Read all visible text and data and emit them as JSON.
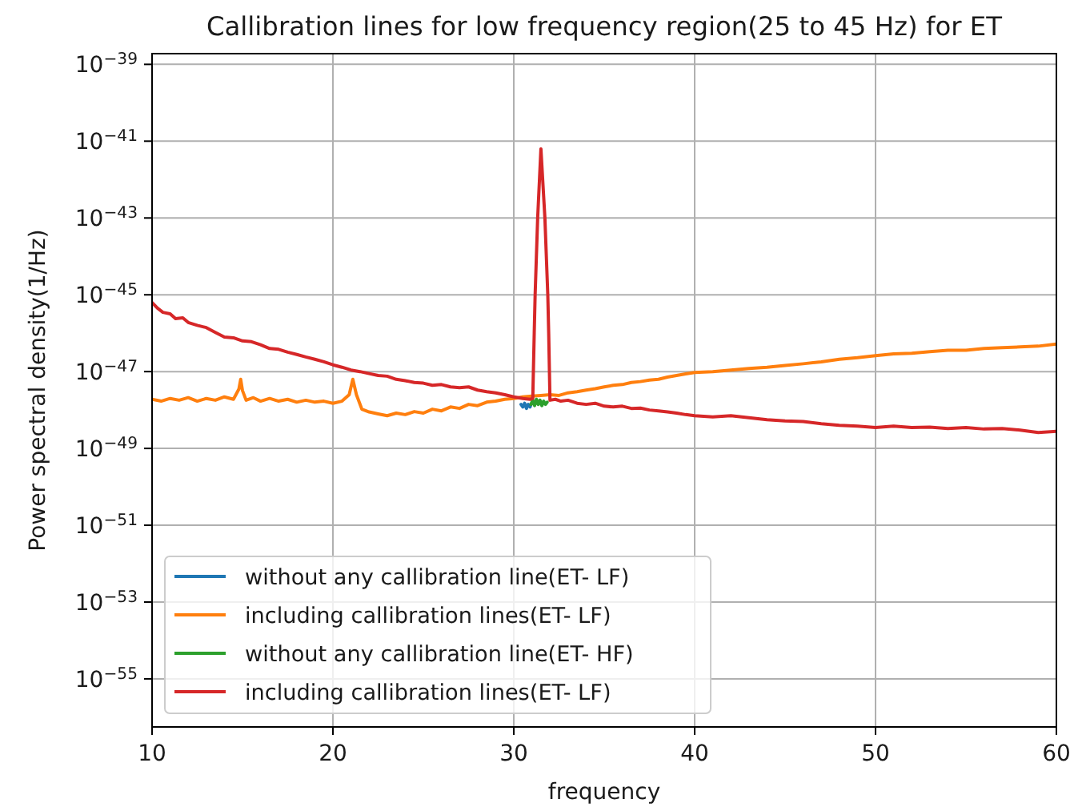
{
  "chart_data": {
    "type": "line",
    "title": "Callibration lines for low frequency region(25 to 45 Hz) for ET",
    "xlabel": "frequency",
    "ylabel": "Power spectral density(1/Hz)",
    "xlim": [
      10,
      60
    ],
    "xticks": [
      10,
      20,
      30,
      40,
      50,
      60
    ],
    "ylim": [
      5.6e-57,
      1.9e-39
    ],
    "log": true,
    "yticks": [
      {
        "value": 1e-39,
        "label": "10$^{−39}$"
      },
      {
        "value": 1e-41,
        "label": "10$^{−41}$"
      },
      {
        "value": 1e-43,
        "label": "10$^{−43}$"
      },
      {
        "value": 1e-45,
        "label": "10$^{−45}$"
      },
      {
        "value": 1e-47,
        "label": "10$^{−47}$"
      },
      {
        "value": 1e-49,
        "label": "10$^{−49}$"
      },
      {
        "value": 1e-51,
        "label": "10$^{−51}$"
      },
      {
        "value": 1e-53,
        "label": "10$^{−53}$"
      },
      {
        "value": 1e-55,
        "label": "10$^{−55}$"
      }
    ],
    "grid": true,
    "legend": "bottom left",
    "series": [
      {
        "name": "without any callibration line(ET- LF)",
        "color": "#1f77b4",
        "x": [
          30.4,
          30.5,
          30.6,
          30.7,
          30.8,
          30.9,
          30.95
        ],
        "values": [
          1.4e-48,
          1.2e-48,
          1.5e-48,
          1.1e-48,
          1.4e-48,
          1.2e-48,
          1.4e-48
        ]
      },
      {
        "name": "including callibration lines(ET- LF)",
        "color": "#ff7f0e",
        "x": [
          10.0,
          10.5,
          11.0,
          11.5,
          12.0,
          12.5,
          13.0,
          13.5,
          14.0,
          14.5,
          14.8,
          14.9,
          15.0,
          15.2,
          15.6,
          16.0,
          16.5,
          17.0,
          17.5,
          18.0,
          18.5,
          19.0,
          19.5,
          20.0,
          20.5,
          20.9,
          21.1,
          21.3,
          21.6,
          22.0,
          22.5,
          23.0,
          23.5,
          24.0,
          24.5,
          25.0,
          25.5,
          26.0,
          26.5,
          27.0,
          27.5,
          28.0,
          28.5,
          29.0,
          29.5,
          30.0,
          30.5,
          31.0,
          31.5,
          32.0,
          32.5,
          33.0,
          33.5,
          34.0,
          34.5,
          35.0,
          35.5,
          36.0,
          36.5,
          37.0,
          37.5,
          38.0,
          38.5,
          39.0,
          39.5,
          40.0,
          41.0,
          42.0,
          43.0,
          44.0,
          45.0,
          46.0,
          47.0,
          48.0,
          49.0,
          50.0,
          51.0,
          52.0,
          53.0,
          54.0,
          55.0,
          56.0,
          57.0,
          58.0,
          59.0,
          60.0
        ],
        "values": [
          1.9e-48,
          1.7e-48,
          2e-48,
          1.8e-48,
          2.1e-48,
          1.7e-48,
          2e-48,
          1.8e-48,
          2.2e-48,
          1.9e-48,
          3.5e-48,
          6.3e-48,
          3.2e-48,
          1.8e-48,
          2.1e-48,
          1.7e-48,
          2e-48,
          1.7e-48,
          1.9e-48,
          1.6e-48,
          1.8e-48,
          1.6e-48,
          1.7e-48,
          1.5e-48,
          1.7e-48,
          2.5e-48,
          6.3e-48,
          2.5e-48,
          1.05e-48,
          8.9e-49,
          7.9e-49,
          7.1e-49,
          8.3e-49,
          7.6e-49,
          9.1e-49,
          8.3e-49,
          1.05e-48,
          9.5e-49,
          1.2e-48,
          1.1e-48,
          1.4e-48,
          1.3e-48,
          1.6e-48,
          1.7e-48,
          1.9e-48,
          2e-48,
          2.2e-48,
          2.3e-48,
          2.4e-48,
          2.5e-48,
          2.4e-48,
          2.8e-48,
          3e-48,
          3.3e-48,
          3.6e-48,
          4e-48,
          4.4e-48,
          4.6e-48,
          5.2e-48,
          5.5e-48,
          6e-48,
          6.3e-48,
          7.2e-48,
          7.9e-48,
          8.7e-48,
          9.5e-48,
          1e-47,
          1.1e-47,
          1.2e-47,
          1.3e-47,
          1.45e-47,
          1.6e-47,
          1.8e-47,
          2.1e-47,
          2.3e-47,
          2.6e-47,
          2.9e-47,
          3e-47,
          3.3e-47,
          3.6e-47,
          3.6e-47,
          4e-47,
          4.2e-47,
          4.4e-47,
          4.6e-47,
          5.2e-47
        ]
      },
      {
        "name": "without any callibration line(ET- HF)",
        "color": "#2ca02c",
        "x": [
          30.95,
          31.05,
          31.15,
          31.25,
          31.35,
          31.45,
          31.55,
          31.65,
          31.75,
          31.85
        ],
        "values": [
          1.4e-48,
          1.8e-48,
          1.3e-48,
          1.9e-48,
          1.4e-48,
          1.8e-48,
          1.3e-48,
          1.7e-48,
          1.4e-48,
          1.6e-48
        ]
      },
      {
        "name": "including callibration lines(ET- LF)",
        "color": "#d62728",
        "x": [
          10.0,
          10.3,
          10.6,
          11.0,
          11.3,
          11.7,
          12.0,
          12.5,
          13.0,
          13.5,
          14.0,
          14.5,
          15.0,
          15.5,
          16.0,
          16.5,
          17.0,
          17.5,
          18.0,
          18.5,
          19.0,
          19.5,
          20.0,
          20.5,
          21.0,
          21.5,
          22.0,
          22.5,
          23.0,
          23.5,
          24.0,
          24.5,
          25.0,
          25.5,
          26.0,
          26.5,
          27.0,
          27.5,
          28.0,
          28.5,
          29.0,
          29.5,
          30.0,
          30.5,
          30.9,
          31.05,
          31.13,
          31.18,
          31.32,
          31.5,
          31.72,
          31.88,
          31.93,
          32.0,
          32.3,
          32.6,
          33.0,
          33.5,
          34.0,
          34.5,
          35.0,
          35.5,
          36.0,
          36.5,
          37.0,
          37.5,
          38.0,
          38.5,
          39.0,
          39.5,
          40.0,
          41.0,
          42.0,
          43.0,
          44.0,
          45.0,
          46.0,
          47.0,
          48.0,
          49.0,
          50.0,
          51.0,
          52.0,
          53.0,
          54.0,
          55.0,
          56.0,
          57.0,
          58.0,
          59.0,
          60.0
        ],
        "values": [
          6.3e-46,
          4.5e-46,
          3.5e-46,
          3.2e-46,
          2.4e-46,
          2.5e-46,
          1.9e-46,
          1.6e-46,
          1.4e-46,
          1.05e-46,
          7.9e-47,
          7.6e-47,
          6.3e-47,
          6e-47,
          5e-47,
          4e-47,
          3.8e-47,
          3.2e-47,
          2.8e-47,
          2.4e-47,
          2.1e-47,
          1.8e-47,
          1.5e-47,
          1.3e-47,
          1.1e-47,
          1e-47,
          8.9e-48,
          7.9e-48,
          7.6e-48,
          6.3e-48,
          5.8e-48,
          5.2e-48,
          5e-48,
          4.4e-48,
          4.6e-48,
          4e-48,
          3.8e-48,
          4e-48,
          3.3e-48,
          3e-48,
          2.8e-48,
          2.5e-48,
          2.2e-48,
          2e-48,
          1.9e-48,
          2e-48,
          1e-46,
          1e-45,
          1e-43,
          6.3e-42,
          1e-43,
          1e-45,
          1e-46,
          1.8e-48,
          1.9e-48,
          1.7e-48,
          1.8e-48,
          1.5e-48,
          1.4e-48,
          1.5e-48,
          1.26e-48,
          1.2e-48,
          1.26e-48,
          1.1e-48,
          1.12e-48,
          1e-48,
          9.5e-49,
          8.9e-49,
          8.3e-49,
          7.6e-49,
          7.1e-49,
          6.6e-49,
          7.1e-49,
          6.3e-49,
          5.6e-49,
          5.2e-49,
          5e-49,
          4.4e-49,
          4e-49,
          3.8e-49,
          3.5e-49,
          3.8e-49,
          3.5e-49,
          3.6e-49,
          3.3e-49,
          3.5e-49,
          3.2e-49,
          3.3e-49,
          3e-49,
          2.6e-49,
          2.8e-49
        ]
      }
    ]
  }
}
